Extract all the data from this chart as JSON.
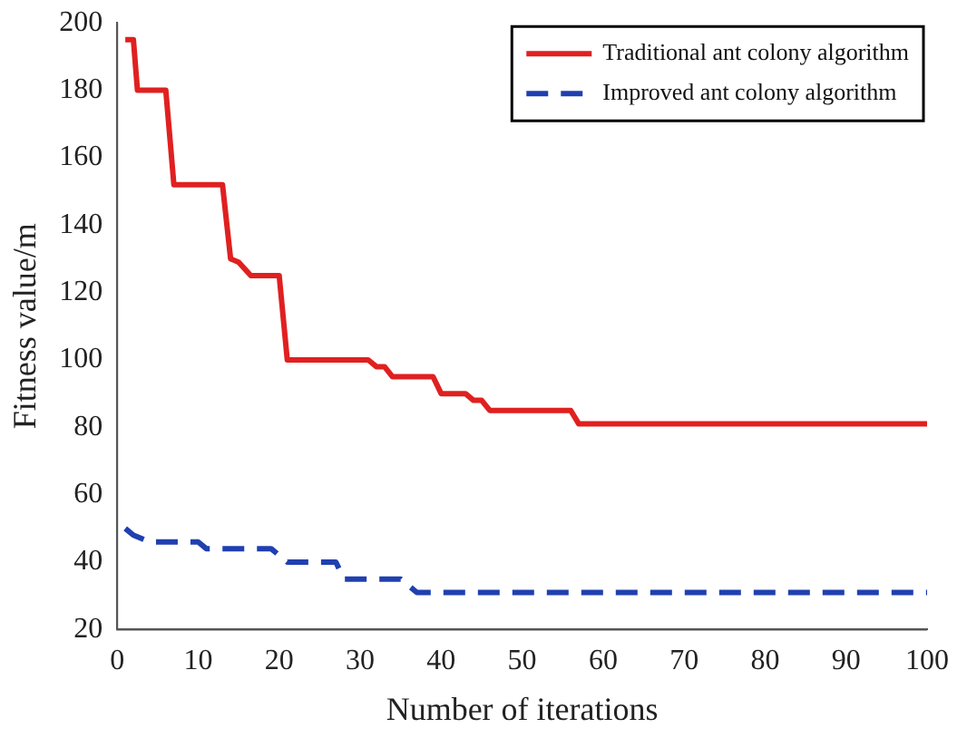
{
  "chart_data": {
    "type": "line",
    "xlabel": "Number of iterations",
    "ylabel": "Fitness value/m",
    "xlim": [
      0,
      100
    ],
    "xticks": [
      0,
      10,
      20,
      30,
      40,
      50,
      60,
      70,
      80,
      90,
      100
    ],
    "ylim": [
      20,
      200
    ],
    "yticks": [
      20,
      40,
      60,
      80,
      100,
      120,
      140,
      160,
      180,
      200
    ],
    "grid": false,
    "legend": "top right",
    "marker": "none",
    "series": [
      {
        "name": "Traditional ant colony algorithm",
        "color": "#e02020",
        "line_style": "solid",
        "x": [
          1,
          2,
          2.5,
          6,
          7,
          13,
          14,
          15,
          16.5,
          20,
          21,
          31,
          32,
          33,
          34,
          39,
          40,
          43,
          44,
          45,
          46,
          56,
          57,
          100
        ],
        "values": [
          195,
          195,
          180,
          180,
          152,
          152,
          130,
          129,
          125,
          125,
          100,
          100,
          98,
          98,
          95,
          95,
          90,
          90,
          88,
          88,
          85,
          85,
          81,
          81
        ]
      },
      {
        "name": "Improved ant colony algorithm",
        "color": "#2040b0",
        "line_style": "dashed",
        "x": [
          1,
          2,
          4,
          10,
          11,
          19,
          20,
          21,
          26,
          27,
          28,
          35,
          37,
          100
        ],
        "values": [
          50,
          48,
          46,
          46,
          44,
          44,
          42,
          40,
          40,
          40,
          35,
          35,
          31,
          31
        ]
      }
    ]
  }
}
